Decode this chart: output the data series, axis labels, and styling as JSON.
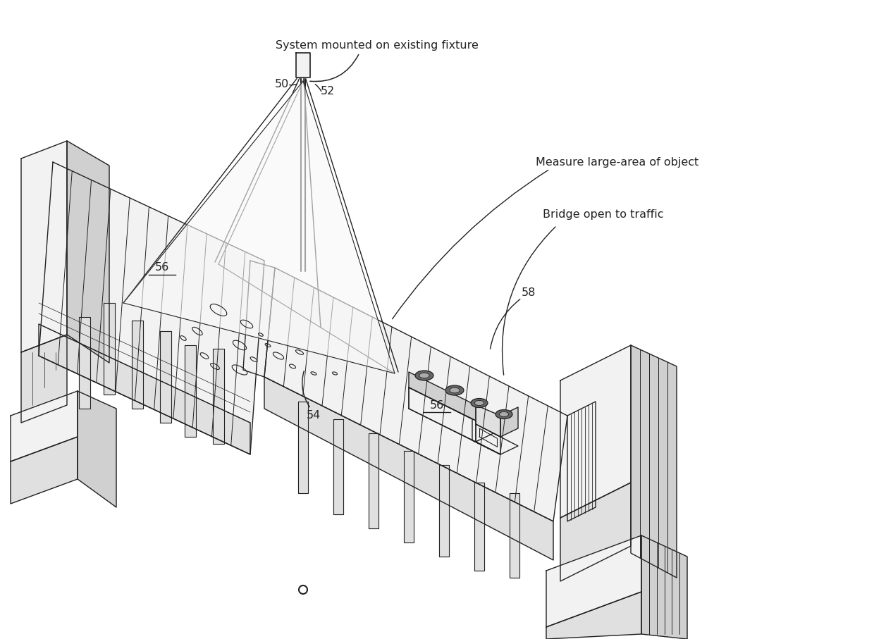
{
  "bg_color": "#ffffff",
  "line_color": "#222222",
  "lw": 1.0,
  "lw_thick": 1.5,
  "fig_width": 12.4,
  "fig_height": 9.07,
  "labels": {
    "system_mounted": "System mounted on existing fixture",
    "measure_large": "Measure large-area of object",
    "bridge_open": "Bridge open to traffic",
    "ref_50": "50",
    "ref_52": "52",
    "ref_54": "54",
    "ref_56a": "56",
    "ref_56b": "56",
    "ref_58": "58"
  },
  "font_size": 11.5
}
